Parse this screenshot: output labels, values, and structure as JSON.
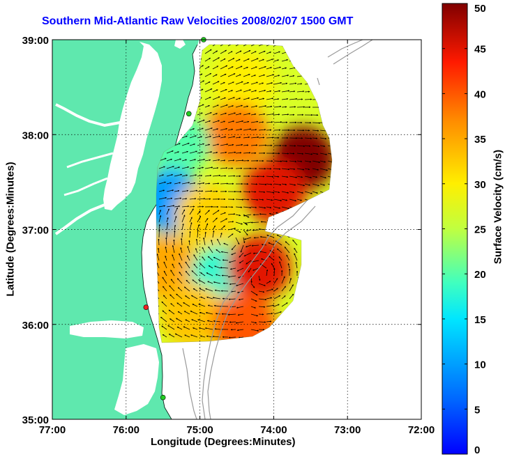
{
  "title": "Southern Mid-Atlantic Raw Velocities 2008/02/07 1500 GMT",
  "x_axis": {
    "label": "Longitude (Degrees:Minutes)",
    "ticks": [
      {
        "value": -77,
        "label": "77:00"
      },
      {
        "value": -76,
        "label": "76:00"
      },
      {
        "value": -75,
        "label": "75:00"
      },
      {
        "value": -74,
        "label": "74:00"
      },
      {
        "value": -73,
        "label": "73:00"
      },
      {
        "value": -72,
        "label": "72:00"
      }
    ],
    "range": [
      -77,
      -72
    ]
  },
  "y_axis": {
    "label": "Latitude (Degrees:Minutes)",
    "ticks": [
      {
        "value": 35,
        "label": "35:00"
      },
      {
        "value": 36,
        "label": "36:00"
      },
      {
        "value": 37,
        "label": "37:00"
      },
      {
        "value": 38,
        "label": "38:00"
      },
      {
        "value": 39,
        "label": "39:00"
      }
    ],
    "range": [
      35,
      39
    ]
  },
  "grid": true,
  "colorbar": {
    "label": "Surface Velocity (cm/s)",
    "range": [
      0,
      50
    ],
    "ticks": [
      0,
      5,
      10,
      15,
      20,
      25,
      30,
      35,
      40,
      45,
      50
    ],
    "colormap": "jet"
  },
  "colors": {
    "land": "#5fe8ae",
    "water": "#ffffff",
    "title": "#0000ff",
    "bathymetry": "#999999",
    "site_active": "#22cc22",
    "site_alert": "#ee2222"
  },
  "radar_sites": [
    {
      "lon": -74.95,
      "lat": 39.0,
      "status": "active"
    },
    {
      "lon": -75.15,
      "lat": 38.22,
      "status": "active"
    },
    {
      "lon": -75.73,
      "lat": 36.18,
      "status": "alert"
    },
    {
      "lon": -75.5,
      "lat": 35.23,
      "status": "active"
    }
  ],
  "chart_data": {
    "type": "heatmap",
    "description_fields": [
      "lon",
      "lat",
      "speed_cm_s"
    ],
    "velocity_regions": [
      {
        "lon": -74.4,
        "lat": 38.55,
        "speed": 30
      },
      {
        "lon": -74.5,
        "lat": 38.0,
        "speed": 38
      },
      {
        "lon": -73.6,
        "lat": 37.75,
        "speed": 50
      },
      {
        "lon": -74.0,
        "lat": 37.4,
        "speed": 45
      },
      {
        "lon": -75.3,
        "lat": 37.9,
        "speed": 20
      },
      {
        "lon": -75.4,
        "lat": 37.3,
        "speed": 10
      },
      {
        "lon": -74.9,
        "lat": 37.15,
        "speed": 32
      },
      {
        "lon": -75.45,
        "lat": 36.6,
        "speed": 35
      },
      {
        "lon": -74.7,
        "lat": 36.5,
        "speed": 18
      },
      {
        "lon": -74.2,
        "lat": 36.6,
        "speed": 45
      },
      {
        "lon": -75.1,
        "lat": 36.1,
        "speed": 33
      },
      {
        "lon": -74.4,
        "lat": 36.0,
        "speed": 40
      }
    ]
  }
}
